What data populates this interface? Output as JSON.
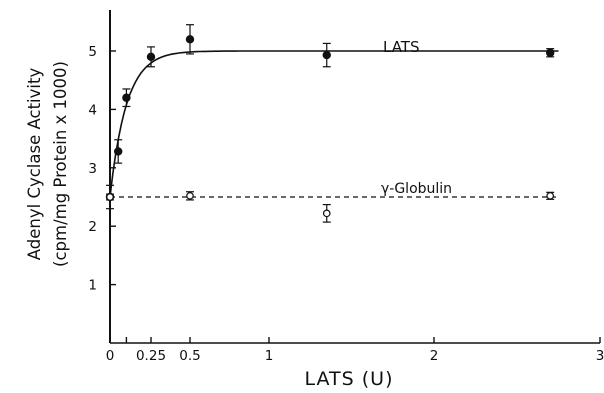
{
  "chart_data": {
    "type": "scatter",
    "title": "",
    "xlabel": "LATS (U)",
    "ylabel_line1": "Adenyl Cyclase Activity",
    "ylabel_line2": "(cpm/mg Protein x 1000)",
    "xlim": [
      0,
      3
    ],
    "ylim": [
      0,
      6
    ],
    "x_ticks": [
      {
        "value": 0,
        "label": "0"
      },
      {
        "value": 0.1,
        "label": ""
      },
      {
        "value": 0.25,
        "label": "0.25"
      },
      {
        "value": 0.5,
        "label": "0.5"
      },
      {
        "value": 1,
        "label": "1"
      },
      {
        "value": 2,
        "label": "2"
      },
      {
        "value": 3,
        "label": "3"
      }
    ],
    "y_ticks": [
      {
        "value": 1,
        "label": "1"
      },
      {
        "value": 2,
        "label": "2"
      },
      {
        "value": 3,
        "label": "3"
      },
      {
        "value": 4,
        "label": "4"
      },
      {
        "value": 5,
        "label": "5"
      }
    ],
    "grid": false,
    "series": [
      {
        "name": "LATS",
        "marker": "filled-circle",
        "line": "solid-fitted-curve",
        "points": [
          {
            "x": 0,
            "y": 2.5,
            "err": 0.2
          },
          {
            "x": 0.05,
            "y": 3.28,
            "err": 0.2
          },
          {
            "x": 0.1,
            "y": 4.2,
            "err": 0.15
          },
          {
            "x": 0.25,
            "y": 4.9,
            "err": 0.17
          },
          {
            "x": 0.5,
            "y": 5.2,
            "err": 0.25
          },
          {
            "x": 1.35,
            "y": 4.93,
            "err": 0.2
          },
          {
            "x": 2.7,
            "y": 4.97,
            "err": 0.07
          }
        ]
      },
      {
        "name": "γ-Globulin",
        "marker": "open-circle",
        "line": "dashed",
        "points": [
          {
            "x": 0,
            "y": 2.5,
            "err": 0.05
          },
          {
            "x": 0.5,
            "y": 2.52,
            "err": 0.07
          },
          {
            "x": 1.35,
            "y": 2.22,
            "err": 0.15
          },
          {
            "x": 2.7,
            "y": 2.52,
            "err": 0.06
          }
        ]
      }
    ]
  }
}
